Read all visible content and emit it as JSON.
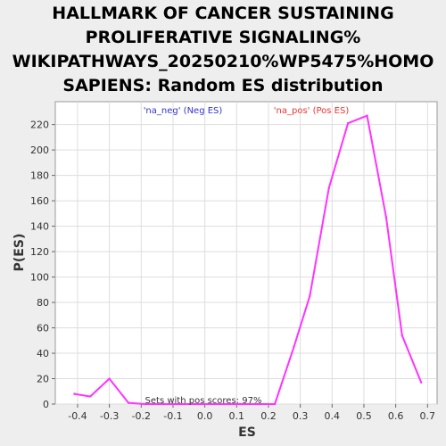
{
  "chart_data": {
    "type": "line",
    "title": [
      "HALLMARK OF CANCER SUSTAINING",
      "PROLIFERATIVE SIGNALING%",
      "WIKIPATHWAYS_20250210%WP5475%HOMO",
      "SAPIENS: Random ES distribution"
    ],
    "xlabel": "ES",
    "ylabel": "P(ES)",
    "xlim": [
      -0.47,
      0.73
    ],
    "ylim": [
      0,
      238
    ],
    "x_ticks": [
      "-0.4",
      "-0.3",
      "-0.2",
      "-0.1",
      "0.0",
      "0.1",
      "0.2",
      "0.3",
      "0.4",
      "0.5",
      "0.6",
      "0.7"
    ],
    "y_ticks": [
      "0",
      "20",
      "40",
      "60",
      "80",
      "100",
      "120",
      "140",
      "160",
      "180",
      "200",
      "220"
    ],
    "grid": true,
    "legend": [
      {
        "label": "'na_neg' (Neg ES)",
        "color": "#3333cc"
      },
      {
        "label": "'na_pos' (Pos ES)",
        "color": "#ee3333"
      }
    ],
    "annotation": "Sets with pos scores: 97%",
    "series": [
      {
        "color": "#ff33ff",
        "x": [
          -0.41,
          -0.36,
          -0.3,
          -0.24,
          -0.19,
          -0.13,
          -0.07,
          0.0,
          0.06,
          0.11,
          0.16,
          0.22,
          0.28,
          0.33,
          0.39,
          0.45,
          0.51,
          0.57,
          0.62,
          0.68
        ],
        "y": [
          8,
          6,
          20,
          1,
          0,
          0,
          0,
          0,
          0,
          0,
          0,
          0,
          45,
          85,
          170,
          221,
          227,
          147,
          54,
          17
        ]
      }
    ]
  }
}
